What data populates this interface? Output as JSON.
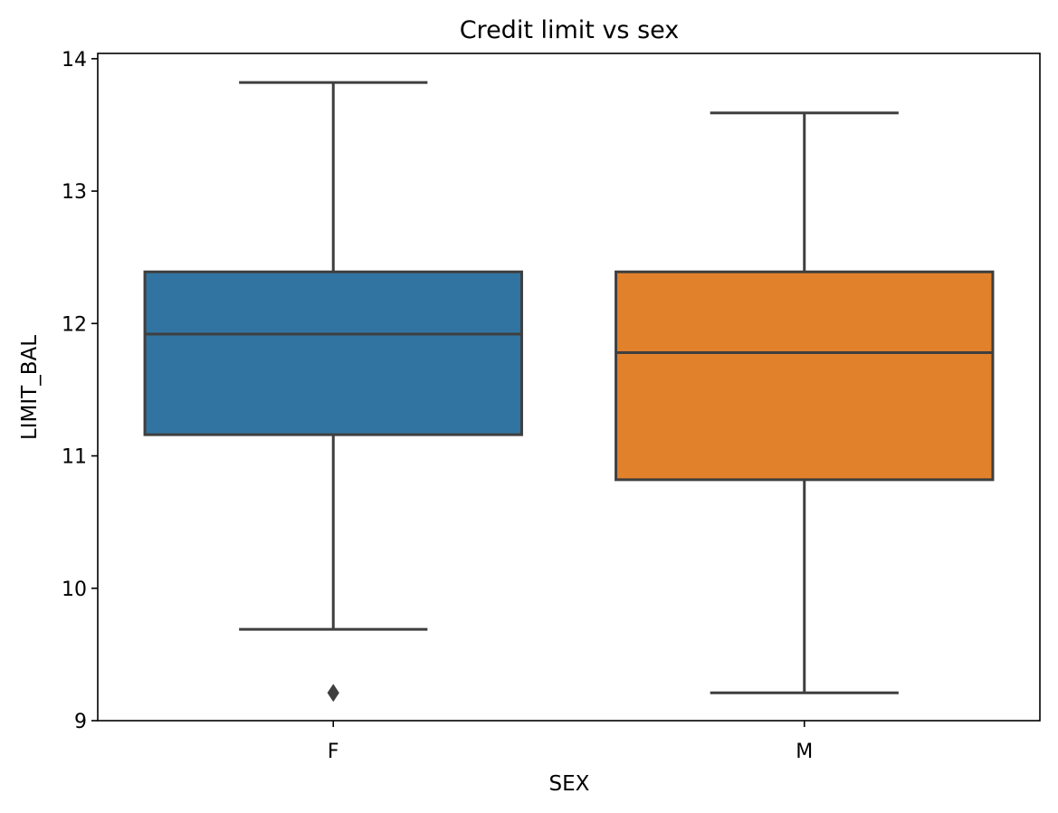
{
  "chart_data": {
    "type": "box",
    "title": "Credit limit vs sex",
    "xlabel": "SEX",
    "ylabel": "LIMIT_BAL",
    "ylim": [
      9,
      14.04
    ],
    "yticks": [
      9,
      10,
      11,
      12,
      13,
      14
    ],
    "categories": [
      "F",
      "M"
    ],
    "colors": {
      "F": "#3274a1",
      "M": "#e1812c",
      "lines": "#3f3f3f"
    },
    "boxes": [
      {
        "category": "F",
        "whisker_low": 9.69,
        "q1": 11.16,
        "median": 11.92,
        "q3": 12.39,
        "whisker_high": 13.82,
        "outliers": [
          9.21
        ]
      },
      {
        "category": "M",
        "whisker_low": 9.21,
        "q1": 10.82,
        "median": 11.78,
        "q3": 12.39,
        "whisker_high": 13.59,
        "outliers": []
      }
    ],
    "grid": false,
    "legend": "none"
  }
}
